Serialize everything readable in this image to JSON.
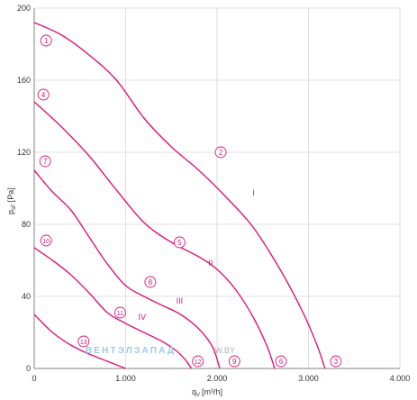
{
  "chart_data": {
    "type": "line",
    "title": "",
    "xlabel": "q",
    "xlabel_sub": "V",
    "xlabel_unit": "[m³/h]",
    "ylabel": "p",
    "ylabel_sub": "sF",
    "ylabel_unit": "[Pa]",
    "xlim": [
      0,
      4000
    ],
    "ylim": [
      0,
      200
    ],
    "x_ticks": [
      {
        "value": 0,
        "label": "0"
      },
      {
        "value": 1000,
        "label": "1.000"
      },
      {
        "value": 2000,
        "label": "2.000"
      },
      {
        "value": 3000,
        "label": "3.000"
      },
      {
        "value": 4000,
        "label": "4.000"
      }
    ],
    "y_ticks": [
      {
        "value": 0,
        "label": "0"
      },
      {
        "value": 40,
        "label": "40"
      },
      {
        "value": 80,
        "label": "80"
      },
      {
        "value": 120,
        "label": "120"
      },
      {
        "value": 160,
        "label": "160"
      },
      {
        "value": 200,
        "label": "200"
      }
    ],
    "grid": true,
    "colors": {
      "curve": "#e0157a",
      "grid": "#d6d6d6",
      "axis": "#808080",
      "text": "#333333"
    },
    "series": [
      {
        "name": "I",
        "points": [
          [
            0,
            192
          ],
          [
            300,
            185
          ],
          [
            600,
            174
          ],
          [
            900,
            160
          ],
          [
            1200,
            139
          ],
          [
            1500,
            123
          ],
          [
            1800,
            110
          ],
          [
            2100,
            95
          ],
          [
            2400,
            78
          ],
          [
            2700,
            54
          ],
          [
            2950,
            30
          ],
          [
            3100,
            12
          ],
          [
            3180,
            0
          ]
        ]
      },
      {
        "name": "II",
        "points": [
          [
            0,
            148
          ],
          [
            300,
            134
          ],
          [
            600,
            118
          ],
          [
            900,
            99
          ],
          [
            1200,
            81
          ],
          [
            1500,
            70
          ],
          [
            1800,
            62
          ],
          [
            2000,
            55
          ],
          [
            2200,
            44
          ],
          [
            2400,
            28
          ],
          [
            2550,
            12
          ],
          [
            2630,
            0
          ]
        ]
      },
      {
        "name": "III",
        "points": [
          [
            0,
            110
          ],
          [
            200,
            98
          ],
          [
            400,
            88
          ],
          [
            600,
            73
          ],
          [
            800,
            58
          ],
          [
            1000,
            46
          ],
          [
            1200,
            40
          ],
          [
            1400,
            35
          ],
          [
            1600,
            30
          ],
          [
            1800,
            22
          ],
          [
            1950,
            12
          ],
          [
            2030,
            0
          ]
        ]
      },
      {
        "name": "IV",
        "points": [
          [
            0,
            67
          ],
          [
            200,
            60
          ],
          [
            400,
            52
          ],
          [
            600,
            42
          ],
          [
            800,
            31
          ],
          [
            1000,
            25
          ],
          [
            1200,
            20
          ],
          [
            1400,
            15
          ],
          [
            1550,
            10
          ],
          [
            1650,
            5
          ],
          [
            1720,
            0
          ]
        ]
      },
      {
        "name": "",
        "points": [
          [
            0,
            30
          ],
          [
            200,
            20
          ],
          [
            400,
            13
          ],
          [
            600,
            8
          ],
          [
            800,
            4
          ],
          [
            1000,
            0
          ]
        ]
      }
    ],
    "curve_labels": [
      {
        "text": "I",
        "x": 2400,
        "y": 96
      },
      {
        "text": "II",
        "x": 1930,
        "y": 57
      },
      {
        "text": "III",
        "x": 1590,
        "y": 36
      },
      {
        "text": "IV",
        "x": 1180,
        "y": 27
      }
    ],
    "point_markers": [
      {
        "text": "1",
        "x": 130,
        "y": 182
      },
      {
        "text": "2",
        "x": 2040,
        "y": 120
      },
      {
        "text": "3",
        "x": 3300,
        "y": 4
      },
      {
        "text": "4",
        "x": 100,
        "y": 152
      },
      {
        "text": "5",
        "x": 1590,
        "y": 70
      },
      {
        "text": "6",
        "x": 2700,
        "y": 4
      },
      {
        "text": "7",
        "x": 120,
        "y": 115
      },
      {
        "text": "8",
        "x": 1270,
        "y": 48
      },
      {
        "text": "9",
        "x": 2190,
        "y": 4
      },
      {
        "text": "10",
        "x": 130,
        "y": 71
      },
      {
        "text": "11",
        "x": 940,
        "y": 31
      },
      {
        "text": "12",
        "x": 1790,
        "y": 4
      },
      {
        "text": "13",
        "x": 540,
        "y": 15
      }
    ],
    "watermark": "ВЕНТЭЛЗАПАД",
    "watermark_suffix": ".W.BY"
  }
}
